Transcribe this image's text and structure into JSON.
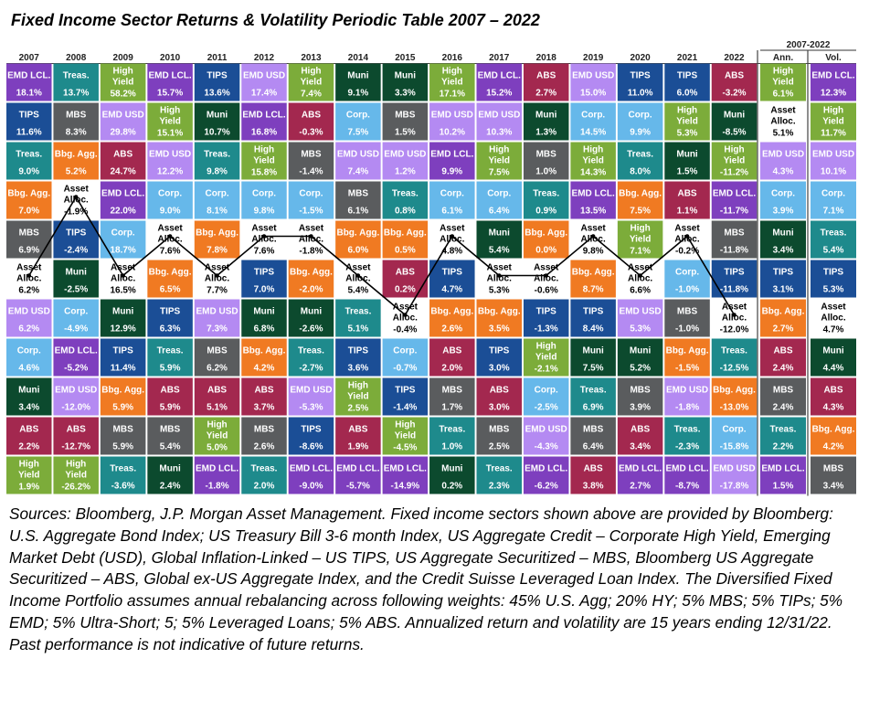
{
  "title": "Fixed Income Sector Returns & Volatility Periodic Table 2007 – 2022",
  "sources": "Sources: Bloomberg, J.P. Morgan Asset Management. Fixed income sectors shown above are provided by Bloomberg: U.S. Aggregate Bond Index; US Treasury Bill 3-6 month Index, US Aggregate Credit – Corporate High Yield, Emerging Market Debt (USD), Global Inflation-Linked – US TIPS, US Aggregate Securitized – MBS, Bloomberg US Aggregate Securitized – ABS, Global ex-US Aggregate Index, and the Credit Suisse Leveraged Loan Index. The Diversified Fixed Income Portfolio assumes annual rebalancing across following weights: 45% U.S. Agg; 20% HY; 5% MBS; 5% TIPs; 5% EMD; 5% Ultra-Short; 5; 5% Leveraged Loans; 5% ABS. Annualized return and volatility are 15 years ending 12/31/22. Past performance is not indicative of future returns.",
  "colors": {
    "EMD LCL.": "#7e3fbe",
    "Treas.": "#1e8a8c",
    "High Yield": "#7cac3a",
    "TIPS": "#1b4e96",
    "EMD USD": "#b48af2",
    "Muni": "#0c4a2e",
    "ABS": "#a3284f",
    "MBS": "#5a5c5e",
    "Corp.": "#66b8ea",
    "Bbg. Agg.": "#f07a22",
    "Asset Alloc.": "#ffffff"
  },
  "chart_data": {
    "type": "table",
    "period_label": "2007-2022",
    "years": [
      "2007",
      "2008",
      "2009",
      "2010",
      "2011",
      "2012",
      "2013",
      "2014",
      "2015",
      "2016",
      "2017",
      "2018",
      "2019",
      "2020",
      "2021",
      "2022"
    ],
    "summary_headers": [
      "Ann.",
      "Vol."
    ],
    "line_series": "Asset Alloc.",
    "columns": [
      [
        [
          "EMD LCL.",
          "18.1%"
        ],
        [
          "TIPS",
          "11.6%"
        ],
        [
          "Treas.",
          "9.0%"
        ],
        [
          "Bbg. Agg.",
          "7.0%"
        ],
        [
          "MBS",
          "6.9%"
        ],
        [
          "Asset Alloc.",
          "6.2%"
        ],
        [
          "EMD USD",
          "6.2%"
        ],
        [
          "Corp.",
          "4.6%"
        ],
        [
          "Muni",
          "3.4%"
        ],
        [
          "ABS",
          "2.2%"
        ],
        [
          "High Yield",
          "1.9%"
        ]
      ],
      [
        [
          "Treas.",
          "13.7%"
        ],
        [
          "MBS",
          "8.3%"
        ],
        [
          "Bbg. Agg.",
          "5.2%"
        ],
        [
          "Asset Alloc.",
          "-1.9%"
        ],
        [
          "TIPS",
          "-2.4%"
        ],
        [
          "Muni",
          "-2.5%"
        ],
        [
          "Corp.",
          "-4.9%"
        ],
        [
          "EMD LCL.",
          "-5.2%"
        ],
        [
          "EMD USD",
          "-12.0%"
        ],
        [
          "ABS",
          "-12.7%"
        ],
        [
          "High Yield",
          "-26.2%"
        ]
      ],
      [
        [
          "High Yield",
          "58.2%"
        ],
        [
          "EMD USD",
          "29.8%"
        ],
        [
          "ABS",
          "24.7%"
        ],
        [
          "EMD LCL.",
          "22.0%"
        ],
        [
          "Corp.",
          "18.7%"
        ],
        [
          "Asset Alloc.",
          "16.5%"
        ],
        [
          "Muni",
          "12.9%"
        ],
        [
          "TIPS",
          "11.4%"
        ],
        [
          "Bbg. Agg.",
          "5.9%"
        ],
        [
          "MBS",
          "5.9%"
        ],
        [
          "Treas.",
          "-3.6%"
        ]
      ],
      [
        [
          "EMD LCL.",
          "15.7%"
        ],
        [
          "High Yield",
          "15.1%"
        ],
        [
          "EMD USD",
          "12.2%"
        ],
        [
          "Corp.",
          "9.0%"
        ],
        [
          "Asset Alloc.",
          "7.6%"
        ],
        [
          "Bbg. Agg.",
          "6.5%"
        ],
        [
          "TIPS",
          "6.3%"
        ],
        [
          "Treas.",
          "5.9%"
        ],
        [
          "ABS",
          "5.9%"
        ],
        [
          "MBS",
          "5.4%"
        ],
        [
          "Muni",
          "2.4%"
        ]
      ],
      [
        [
          "TIPS",
          "13.6%"
        ],
        [
          "Muni",
          "10.7%"
        ],
        [
          "Treas.",
          "9.8%"
        ],
        [
          "Corp.",
          "8.1%"
        ],
        [
          "Bbg. Agg.",
          "7.8%"
        ],
        [
          "Asset Alloc.",
          "7.7%"
        ],
        [
          "EMD USD",
          "7.3%"
        ],
        [
          "MBS",
          "6.2%"
        ],
        [
          "ABS",
          "5.1%"
        ],
        [
          "High Yield",
          "5.0%"
        ],
        [
          "EMD LCL.",
          "-1.8%"
        ]
      ],
      [
        [
          "EMD USD",
          "17.4%"
        ],
        [
          "EMD LCL.",
          "16.8%"
        ],
        [
          "High Yield",
          "15.8%"
        ],
        [
          "Corp.",
          "9.8%"
        ],
        [
          "Asset Alloc.",
          "7.6%"
        ],
        [
          "TIPS",
          "7.0%"
        ],
        [
          "Muni",
          "6.8%"
        ],
        [
          "Bbg. Agg.",
          "4.2%"
        ],
        [
          "ABS",
          "3.7%"
        ],
        [
          "MBS",
          "2.6%"
        ],
        [
          "Treas.",
          "2.0%"
        ]
      ],
      [
        [
          "High Yield",
          "7.4%"
        ],
        [
          "ABS",
          "-0.3%"
        ],
        [
          "MBS",
          "-1.4%"
        ],
        [
          "Corp.",
          "-1.5%"
        ],
        [
          "Asset Alloc.",
          "-1.8%"
        ],
        [
          "Bbg. Agg.",
          "-2.0%"
        ],
        [
          "Muni",
          "-2.6%"
        ],
        [
          "Treas.",
          "-2.7%"
        ],
        [
          "EMD USD",
          "-5.3%"
        ],
        [
          "TIPS",
          "-8.6%"
        ],
        [
          "EMD LCL.",
          "-9.0%"
        ]
      ],
      [
        [
          "Muni",
          "9.1%"
        ],
        [
          "Corp.",
          "7.5%"
        ],
        [
          "EMD USD",
          "7.4%"
        ],
        [
          "MBS",
          "6.1%"
        ],
        [
          "Bbg. Agg.",
          "6.0%"
        ],
        [
          "Asset Alloc.",
          "5.4%"
        ],
        [
          "Treas.",
          "5.1%"
        ],
        [
          "TIPS",
          "3.6%"
        ],
        [
          "High Yield",
          "2.5%"
        ],
        [
          "ABS",
          "1.9%"
        ],
        [
          "EMD LCL.",
          "-5.7%"
        ]
      ],
      [
        [
          "Muni",
          "3.3%"
        ],
        [
          "MBS",
          "1.5%"
        ],
        [
          "EMD USD",
          "1.2%"
        ],
        [
          "Treas.",
          "0.8%"
        ],
        [
          "Bbg. Agg.",
          "0.5%"
        ],
        [
          "ABS",
          "0.2%"
        ],
        [
          "Asset Alloc.",
          "-0.4%"
        ],
        [
          "Corp.",
          "-0.7%"
        ],
        [
          "TIPS",
          "-1.4%"
        ],
        [
          "High Yield",
          "-4.5%"
        ],
        [
          "EMD LCL.",
          "-14.9%"
        ]
      ],
      [
        [
          "High Yield",
          "17.1%"
        ],
        [
          "EMD USD",
          "10.2%"
        ],
        [
          "EMD LCL.",
          "9.9%"
        ],
        [
          "Corp.",
          "6.1%"
        ],
        [
          "Asset Alloc.",
          "4.8%"
        ],
        [
          "TIPS",
          "4.7%"
        ],
        [
          "Bbg. Agg.",
          "2.6%"
        ],
        [
          "ABS",
          "2.0%"
        ],
        [
          "MBS",
          "1.7%"
        ],
        [
          "Treas.",
          "1.0%"
        ],
        [
          "Muni",
          "0.2%"
        ]
      ],
      [
        [
          "EMD LCL.",
          "15.2%"
        ],
        [
          "EMD USD",
          "10.3%"
        ],
        [
          "High Yield",
          "7.5%"
        ],
        [
          "Corp.",
          "6.4%"
        ],
        [
          "Muni",
          "5.4%"
        ],
        [
          "Asset Alloc.",
          "5.3%"
        ],
        [
          "Bbg. Agg.",
          "3.5%"
        ],
        [
          "TIPS",
          "3.0%"
        ],
        [
          "ABS",
          "3.0%"
        ],
        [
          "MBS",
          "2.5%"
        ],
        [
          "Treas.",
          "2.3%"
        ]
      ],
      [
        [
          "ABS",
          "2.7%"
        ],
        [
          "Muni",
          "1.3%"
        ],
        [
          "MBS",
          "1.0%"
        ],
        [
          "Treas.",
          "0.9%"
        ],
        [
          "Bbg. Agg.",
          "0.0%"
        ],
        [
          "Asset Alloc.",
          "-0.6%"
        ],
        [
          "TIPS",
          "-1.3%"
        ],
        [
          "High Yield",
          "-2.1%"
        ],
        [
          "Corp.",
          "-2.5%"
        ],
        [
          "EMD USD",
          "-4.3%"
        ],
        [
          "EMD LCL.",
          "-6.2%"
        ]
      ],
      [
        [
          "EMD USD",
          "15.0%"
        ],
        [
          "Corp.",
          "14.5%"
        ],
        [
          "High Yield",
          "14.3%"
        ],
        [
          "EMD LCL.",
          "13.5%"
        ],
        [
          "Asset Alloc.",
          "9.8%"
        ],
        [
          "Bbg. Agg.",
          "8.7%"
        ],
        [
          "TIPS",
          "8.4%"
        ],
        [
          "Muni",
          "7.5%"
        ],
        [
          "Treas.",
          "6.9%"
        ],
        [
          "MBS",
          "6.4%"
        ],
        [
          "ABS",
          "3.8%"
        ]
      ],
      [
        [
          "TIPS",
          "11.0%"
        ],
        [
          "Corp.",
          "9.9%"
        ],
        [
          "Treas.",
          "8.0%"
        ],
        [
          "Bbg. Agg.",
          "7.5%"
        ],
        [
          "High Yield",
          "7.1%"
        ],
        [
          "Asset Alloc.",
          "6.6%"
        ],
        [
          "EMD USD",
          "5.3%"
        ],
        [
          "Muni",
          "5.2%"
        ],
        [
          "MBS",
          "3.9%"
        ],
        [
          "ABS",
          "3.4%"
        ],
        [
          "EMD LCL.",
          "2.7%"
        ]
      ],
      [
        [
          "TIPS",
          "6.0%"
        ],
        [
          "High Yield",
          "5.3%"
        ],
        [
          "Muni",
          "1.5%"
        ],
        [
          "ABS",
          "1.1%"
        ],
        [
          "Asset Alloc.",
          "-0.2%"
        ],
        [
          "Corp.",
          "-1.0%"
        ],
        [
          "MBS",
          "-1.0%"
        ],
        [
          "Bbg. Agg.",
          "-1.5%"
        ],
        [
          "EMD USD",
          "-1.8%"
        ],
        [
          "Treas.",
          "-2.3%"
        ],
        [
          "EMD LCL.",
          "-8.7%"
        ]
      ],
      [
        [
          "ABS",
          "-3.2%"
        ],
        [
          "Muni",
          "-8.5%"
        ],
        [
          "High Yield",
          "-11.2%"
        ],
        [
          "EMD LCL.",
          "-11.7%"
        ],
        [
          "MBS",
          "-11.8%"
        ],
        [
          "TIPS",
          "-11.8%"
        ],
        [
          "Asset Alloc.",
          "-12.0%"
        ],
        [
          "Treas.",
          "-12.5%"
        ],
        [
          "Bbg. Agg.",
          "-13.0%"
        ],
        [
          "Corp.",
          "-15.8%"
        ],
        [
          "EMD USD",
          "-17.8%"
        ]
      ]
    ],
    "annualized": [
      [
        "High Yield",
        "6.1%"
      ],
      [
        "Asset Alloc.",
        "5.1%"
      ],
      [
        "EMD USD",
        "4.3%"
      ],
      [
        "Corp.",
        "3.9%"
      ],
      [
        "Muni",
        "3.4%"
      ],
      [
        "TIPS",
        "3.1%"
      ],
      [
        "Bbg. Agg.",
        "2.7%"
      ],
      [
        "ABS",
        "2.4%"
      ],
      [
        "MBS",
        "2.4%"
      ],
      [
        "Treas.",
        "2.2%"
      ],
      [
        "EMD LCL.",
        "1.5%"
      ]
    ],
    "volatility": [
      [
        "EMD LCL.",
        "12.3%"
      ],
      [
        "High Yield",
        "11.7%"
      ],
      [
        "EMD USD",
        "10.1%"
      ],
      [
        "Corp.",
        "7.1%"
      ],
      [
        "Treas.",
        "5.4%"
      ],
      [
        "TIPS",
        "5.3%"
      ],
      [
        "Asset Alloc.",
        "4.7%"
      ],
      [
        "Muni",
        "4.4%"
      ],
      [
        "ABS",
        "4.3%"
      ],
      [
        "Bbg. Agg.",
        "4.2%"
      ],
      [
        "MBS",
        "3.4%"
      ]
    ]
  }
}
